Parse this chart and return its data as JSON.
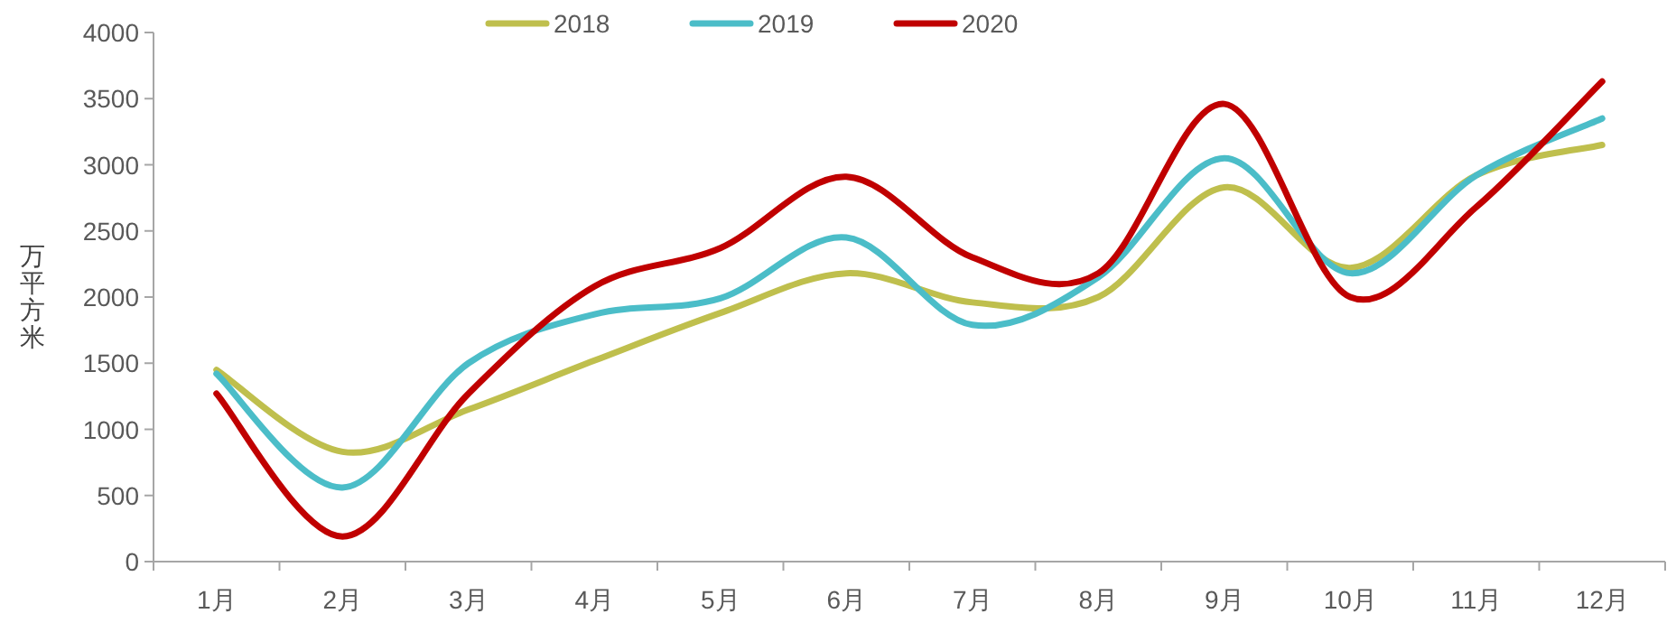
{
  "chart_data": {
    "type": "line",
    "ylabel": "万平方米",
    "categories": [
      "1月",
      "2月",
      "3月",
      "4月",
      "5月",
      "6月",
      "7月",
      "8月",
      "9月",
      "10月",
      "11月",
      "12月"
    ],
    "series": [
      {
        "name": "2018",
        "color": "#bfbf4d",
        "values": [
          1450,
          830,
          1150,
          1520,
          1880,
          2180,
          1960,
          2000,
          2830,
          2220,
          2920,
          3150
        ]
      },
      {
        "name": "2019",
        "color": "#4bbdc8",
        "values": [
          1420,
          560,
          1500,
          1870,
          1990,
          2450,
          1790,
          2150,
          3050,
          2180,
          2920,
          3350
        ]
      },
      {
        "name": "2020",
        "color": "#c00000",
        "values": [
          1270,
          190,
          1270,
          2080,
          2370,
          2910,
          2300,
          2180,
          3460,
          2000,
          2680,
          3630
        ]
      }
    ],
    "ylim": [
      0,
      4000
    ],
    "yticks": [
      0,
      500,
      1000,
      1500,
      2000,
      2500,
      3000,
      3500,
      4000
    ],
    "grid": false,
    "legend": "top",
    "marker": "none",
    "line_style": "solid"
  }
}
